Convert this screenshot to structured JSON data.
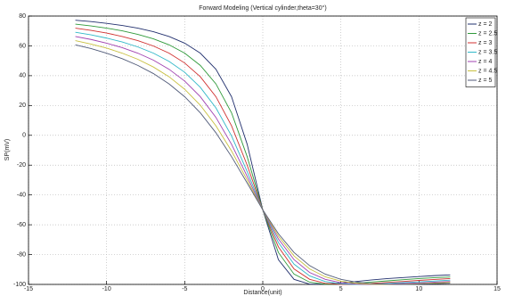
{
  "chart_data": {
    "type": "line",
    "title": "Forward Modeling (Vertical cylinder,theta=30°)",
    "xlabel": "Distance(unit)",
    "ylabel": "SP(mV)",
    "x": [
      -12,
      -11,
      -10,
      -9,
      -8,
      -7,
      -6,
      -5,
      -4,
      -3,
      -2,
      -1,
      0,
      1,
      2,
      3,
      4,
      5,
      6,
      7,
      8,
      9,
      10,
      11,
      12
    ],
    "series": [
      {
        "name": "z = 2",
        "color": "#22306e",
        "values": [
          77.2,
          76.3,
          75.1,
          73.7,
          71.9,
          69.5,
          66.3,
          61.8,
          55.1,
          44.3,
          25.9,
          -6.0,
          -50,
          -83.4,
          -96.6,
          -99.8,
          -99.8,
          -99.0,
          -98.0,
          -97.0,
          -96.1,
          -95.4,
          -94.7,
          -94.1,
          -93.6
        ]
      },
      {
        "name": "z = 2.5",
        "color": "#2f9a3a",
        "values": [
          74.6,
          73.4,
          71.9,
          70.1,
          67.7,
          64.7,
          60.7,
          55.1,
          46.9,
          34.5,
          15.1,
          -14.3,
          -50,
          -78.6,
          -93.1,
          -98.5,
          -99.9,
          -99.8,
          -99.2,
          -98.4,
          -97.6,
          -96.8,
          -96.1,
          -95.5,
          -95.0
        ]
      },
      {
        "name": "z = 3",
        "color": "#d03030",
        "values": [
          71.9,
          70.4,
          68.6,
          66.3,
          63.5,
          59.9,
          55.1,
          48.5,
          39.3,
          25.9,
          6.4,
          -20.0,
          -50,
          -74.8,
          -89.6,
          -96.6,
          -99.3,
          -100.0,
          -99.8,
          -99.3,
          -98.6,
          -98.0,
          -97.3,
          -96.7,
          -96.1
        ]
      },
      {
        "name": "z = 3.5",
        "color": "#30b8c8",
        "values": [
          69.1,
          67.4,
          65.2,
          62.6,
          59.3,
          55.1,
          49.6,
          42.3,
          32.2,
          18.4,
          -0.4,
          -24.3,
          -50,
          -71.9,
          -86.4,
          -94.3,
          -98.1,
          -99.6,
          -100.0,
          -99.8,
          -99.4,
          -98.8,
          -98.3,
          -97.7,
          -97.1
        ]
      },
      {
        "name": "z = 4",
        "color": "#a040b0",
        "values": [
          66.3,
          64.3,
          61.8,
          58.8,
          55.1,
          50.4,
          44.3,
          36.4,
          25.9,
          12.0,
          -6.0,
          -27.5,
          -50,
          -69.5,
          -83.4,
          -92.0,
          -96.6,
          -98.9,
          -99.8,
          -100.0,
          -99.8,
          -99.4,
          -99.0,
          -98.5,
          -98.0
        ]
      },
      {
        "name": "z = 4.5",
        "color": "#c8c040",
        "values": [
          63.5,
          61.2,
          58.5,
          55.1,
          51.0,
          45.8,
          39.3,
          30.9,
          20.2,
          6.4,
          -10.5,
          -30.0,
          -50,
          -67.6,
          -80.9,
          -89.6,
          -94.9,
          -97.8,
          -99.3,
          -99.9,
          -100.0,
          -99.8,
          -99.5,
          -99.1,
          -98.6
        ]
      },
      {
        "name": "z = 5",
        "color": "#505a78",
        "values": [
          60.7,
          58.2,
          55.1,
          51.4,
          46.9,
          41.4,
          34.5,
          25.9,
          15.1,
          1.7,
          -14.3,
          -32.0,
          -50,
          -66.0,
          -78.6,
          -87.4,
          -93.1,
          -96.6,
          -98.5,
          -99.5,
          -99.9,
          -100.0,
          -99.8,
          -99.5,
          -99.2
        ]
      }
    ],
    "xlim": [
      -15,
      15
    ],
    "xticks": [
      -15,
      -10,
      -5,
      0,
      5,
      10,
      15
    ],
    "ylim": [
      -100,
      80
    ],
    "yticks": [
      -100,
      -80,
      -60,
      -40,
      -20,
      0,
      20,
      40,
      60,
      80
    ],
    "grid": true,
    "legend": "top-right"
  }
}
